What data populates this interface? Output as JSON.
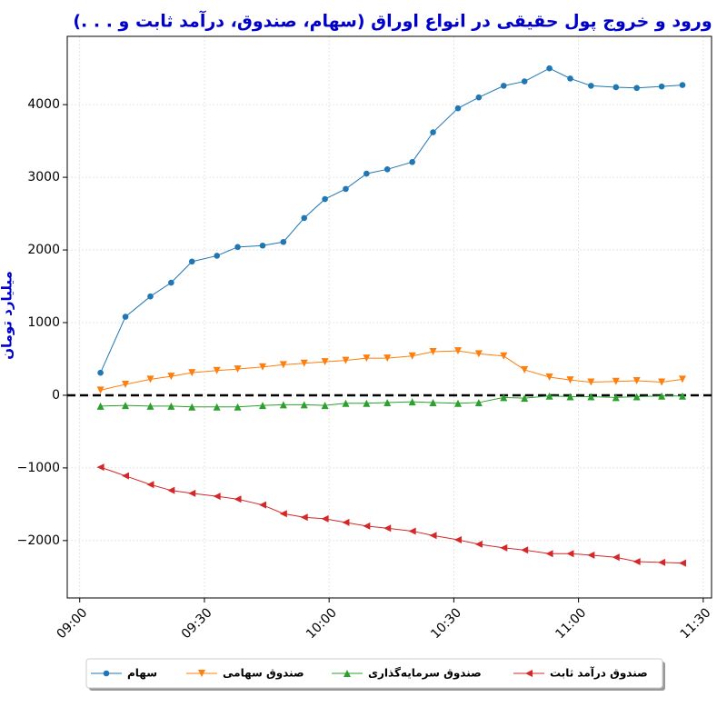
{
  "chart_data": {
    "type": "line",
    "title": "ورود و خروج پول حقیقی در انواع اوراق (سهام، صندوق، درآمد ثابت و . . .)",
    "y_label": "میلیارد تومان",
    "x": [
      "09:05",
      "09:11",
      "09:17",
      "09:22",
      "09:27",
      "09:33",
      "09:38",
      "09:44",
      "09:49",
      "09:54",
      "09:59",
      "10:04",
      "10:09",
      "10:14",
      "10:20",
      "10:25",
      "10:31",
      "10:36",
      "10:42",
      "10:47",
      "10:53",
      "10:58",
      "11:03",
      "11:09",
      "11:14",
      "11:20",
      "11:25"
    ],
    "series": [
      {
        "name": "سهام",
        "color": "#1f77b4",
        "marker": "circle",
        "values": [
          310,
          1080,
          1360,
          1550,
          1840,
          1920,
          2040,
          2060,
          2110,
          2440,
          2700,
          2840,
          3050,
          3110,
          3210,
          3620,
          3950,
          4100,
          4260,
          4320,
          4500,
          4360,
          4260,
          4240,
          4230,
          4250,
          4270
        ]
      },
      {
        "name": "صندوق سهامی",
        "color": "#ff7f0e",
        "marker": "triangle-down",
        "values": [
          70,
          150,
          220,
          260,
          310,
          340,
          360,
          390,
          420,
          440,
          460,
          480,
          510,
          510,
          540,
          600,
          610,
          570,
          540,
          350,
          250,
          210,
          180,
          190,
          200,
          180,
          220
        ]
      },
      {
        "name": "صندوق سرمایه‌گذاری",
        "color": "#2ca02c",
        "marker": "triangle-up",
        "values": [
          -150,
          -140,
          -150,
          -150,
          -160,
          -160,
          -160,
          -140,
          -130,
          -130,
          -140,
          -110,
          -110,
          -100,
          -90,
          -100,
          -110,
          -100,
          -30,
          -40,
          -10,
          -20,
          -20,
          -30,
          -20,
          -10,
          -10
        ]
      },
      {
        "name": "صندوق درآمد ثابت",
        "color": "#d62728",
        "marker": "triangle-left",
        "values": [
          -990,
          -1110,
          -1230,
          -1310,
          -1350,
          -1390,
          -1430,
          -1510,
          -1630,
          -1680,
          -1700,
          -1750,
          -1800,
          -1830,
          -1870,
          -1930,
          -1990,
          -2050,
          -2100,
          -2130,
          -2180,
          -2180,
          -2200,
          -2230,
          -2290,
          -2300,
          -2310
        ]
      }
    ],
    "xlim": [
      "08:57",
      "11:32"
    ],
    "xticks": [
      "09:00",
      "09:30",
      "10:00",
      "10:30",
      "11:00",
      "11:30"
    ],
    "ylim": [
      -2790,
      4940
    ],
    "yticks": [
      {
        "value": -2000,
        "label": "−2000"
      },
      {
        "value": -1000,
        "label": "−1000"
      },
      0,
      1000,
      2000,
      3000,
      4000
    ],
    "reference_line": 0,
    "grid": true,
    "legend": "bottom"
  }
}
